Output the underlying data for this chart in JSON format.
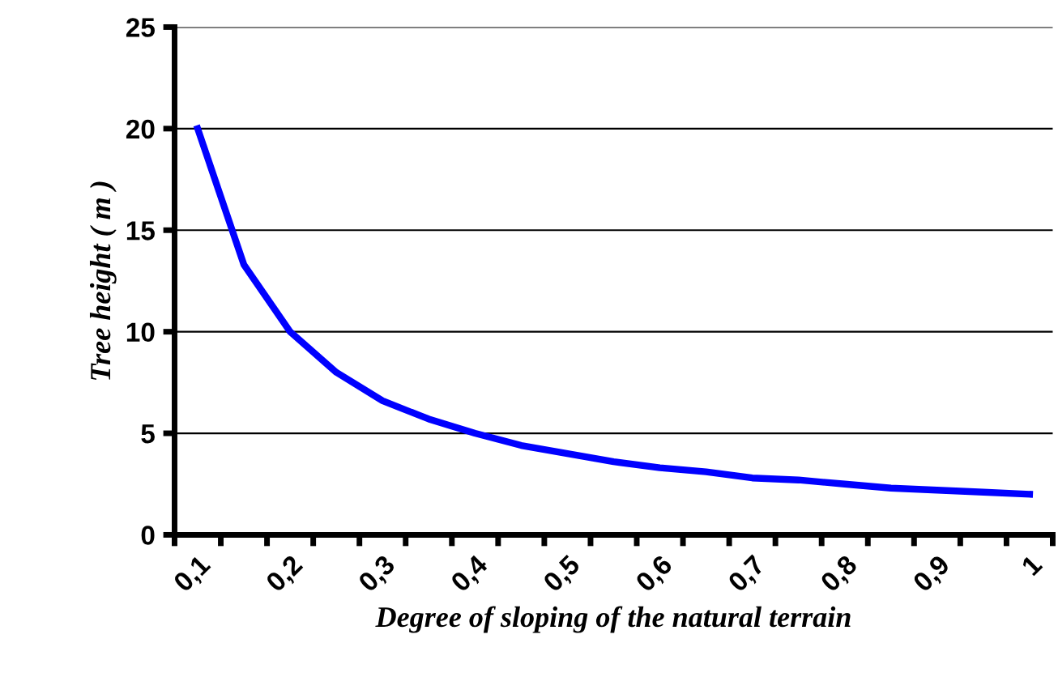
{
  "chart_data": {
    "type": "line",
    "xlabel": "Degree of sloping of the natural terrain",
    "ylabel": "Tree height ( m )",
    "categories": [
      "0,1",
      null,
      "0,2",
      null,
      "0,3",
      null,
      "0,4",
      null,
      "0,5",
      null,
      "0,6",
      null,
      "0,7",
      null,
      "0,8",
      null,
      "0,9",
      null,
      "1"
    ],
    "series": [
      {
        "color": "#0000ff",
        "values": [
          20,
          13.3,
          10,
          8,
          6.6,
          5.7,
          5,
          4.4,
          4,
          3.6,
          3.3,
          3.1,
          2.8,
          2.7,
          2.5,
          2.3,
          2.2,
          2.1,
          2.0
        ]
      }
    ],
    "ylim": [
      0,
      25
    ],
    "yticks": [
      0,
      5,
      10,
      15,
      20,
      25
    ],
    "grid": "y",
    "legend": false
  }
}
